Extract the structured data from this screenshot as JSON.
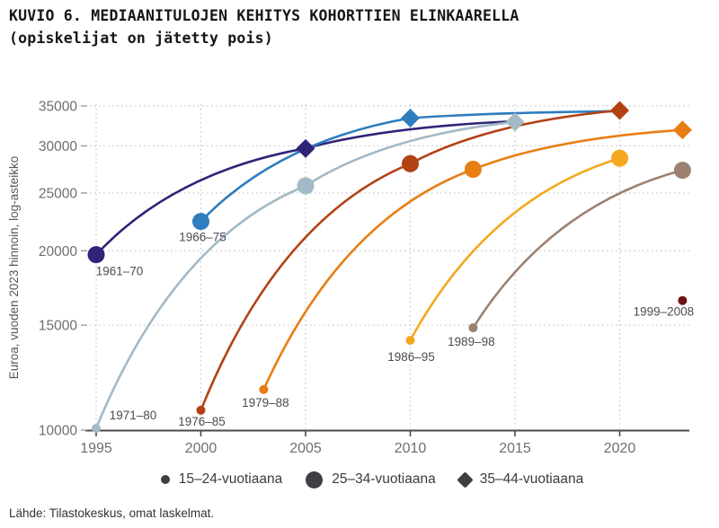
{
  "title": {
    "line1": "KUVIO 6. MEDIAANITULOJEN KEHITYS KOHORTTIEN ELINKAARELLA",
    "line2": "(opiskelijat on jätetty pois)"
  },
  "footer": {
    "source": "Lähde: Tilastokeskus, omat laskelmat."
  },
  "legend": {
    "marker_color": "#413e44",
    "items": [
      {
        "marker": "small",
        "label": "15–24-vuotiaana"
      },
      {
        "marker": "large",
        "label": "25–34-vuotiaana"
      },
      {
        "marker": "diamond",
        "label": "35–44-vuotiaana"
      }
    ]
  },
  "chart_data": {
    "type": "line",
    "title": "KUVIO 6. Mediaanitulojen kehitys kohorttien elinkaarella (opiskelijat on jätetty pois)",
    "xlabel": "",
    "ylabel": "Euroa, vuoden 2023 hinnoin, log-asteikko",
    "y_scale": "log",
    "y_ticks": [
      10000,
      15000,
      20000,
      25000,
      30000,
      35000
    ],
    "x_ticks": [
      1995,
      2000,
      2005,
      2010,
      2015,
      2020
    ],
    "xlim": [
      1994.5,
      2024
    ],
    "ylim": [
      10000,
      35000
    ],
    "grid": "dotted",
    "legend_position": "bottom",
    "marker_meaning": {
      "small": "15–24-vuotiaana",
      "large": "25–34-vuotiaana",
      "diamond": "35–44-vuotiaana"
    },
    "series": [
      {
        "cohort": "1961–70",
        "color": "#2e2478",
        "points": [
          {
            "year": 1995,
            "value": 19700,
            "marker": "large"
          },
          {
            "year": 2005,
            "value": 29700,
            "marker": "diamond"
          },
          {
            "year": 2015,
            "value": 33000,
            "marker": "none"
          }
        ],
        "label": {
          "anchor_index": 0,
          "dx": 26,
          "dy": 23
        }
      },
      {
        "cohort": "1966–75",
        "color": "#2e7dbe",
        "points": [
          {
            "year": 2000,
            "value": 22400,
            "marker": "large"
          },
          {
            "year": 2010,
            "value": 33400,
            "marker": "diamond"
          },
          {
            "year": 2020,
            "value": 34300,
            "marker": "none"
          }
        ],
        "label": {
          "anchor_index": 0,
          "dx": 2,
          "dy": 22
        }
      },
      {
        "cohort": "1971–80",
        "color": "#a3b9c6",
        "points": [
          {
            "year": 1995,
            "value": 10070,
            "marker": "small"
          },
          {
            "year": 2005,
            "value": 25700,
            "marker": "large"
          },
          {
            "year": 2015,
            "value": 32900,
            "marker": "diamond"
          }
        ],
        "label": {
          "anchor_index": 0,
          "dx": 41,
          "dy": -10
        }
      },
      {
        "cohort": "1976–85",
        "color": "#b24113",
        "points": [
          {
            "year": 2000,
            "value": 10800,
            "marker": "small"
          },
          {
            "year": 2010,
            "value": 28000,
            "marker": "large"
          },
          {
            "year": 2020,
            "value": 34400,
            "marker": "diamond"
          }
        ],
        "label": {
          "anchor_index": 0,
          "dx": 1,
          "dy": 17
        }
      },
      {
        "cohort": "1979–88",
        "color": "#e87d12",
        "points": [
          {
            "year": 2003,
            "value": 11700,
            "marker": "small"
          },
          {
            "year": 2013,
            "value": 27400,
            "marker": "large"
          },
          {
            "year": 2023,
            "value": 31900,
            "marker": "diamond"
          }
        ],
        "label": {
          "anchor_index": 0,
          "dx": 2,
          "dy": 19
        }
      },
      {
        "cohort": "1986–95",
        "color": "#f3a81e",
        "points": [
          {
            "year": 2010,
            "value": 14150,
            "marker": "small"
          },
          {
            "year": 2020,
            "value": 28600,
            "marker": "large"
          }
        ],
        "label": {
          "anchor_index": 0,
          "dx": 1,
          "dy": 23
        }
      },
      {
        "cohort": "1989–98",
        "color": "#9c8071",
        "points": [
          {
            "year": 2013,
            "value": 14850,
            "marker": "small"
          },
          {
            "year": 2023,
            "value": 27300,
            "marker": "large"
          }
        ],
        "label": {
          "anchor_index": 0,
          "dx": -2,
          "dy": 20
        }
      },
      {
        "cohort": "1999–2008",
        "color": "#6e1212",
        "points": [
          {
            "year": 2023,
            "value": 16500,
            "marker": "small"
          }
        ],
        "label": {
          "anchor_index": 0,
          "dx": -21,
          "dy": 17
        }
      }
    ]
  },
  "style": {
    "axis_color": "#4a4a4a",
    "tick_label_color": "#6e6e6e",
    "grid_color": "#c9c9c9",
    "annotation_color": "#4b4b52",
    "axis_title_color": "#575757"
  }
}
